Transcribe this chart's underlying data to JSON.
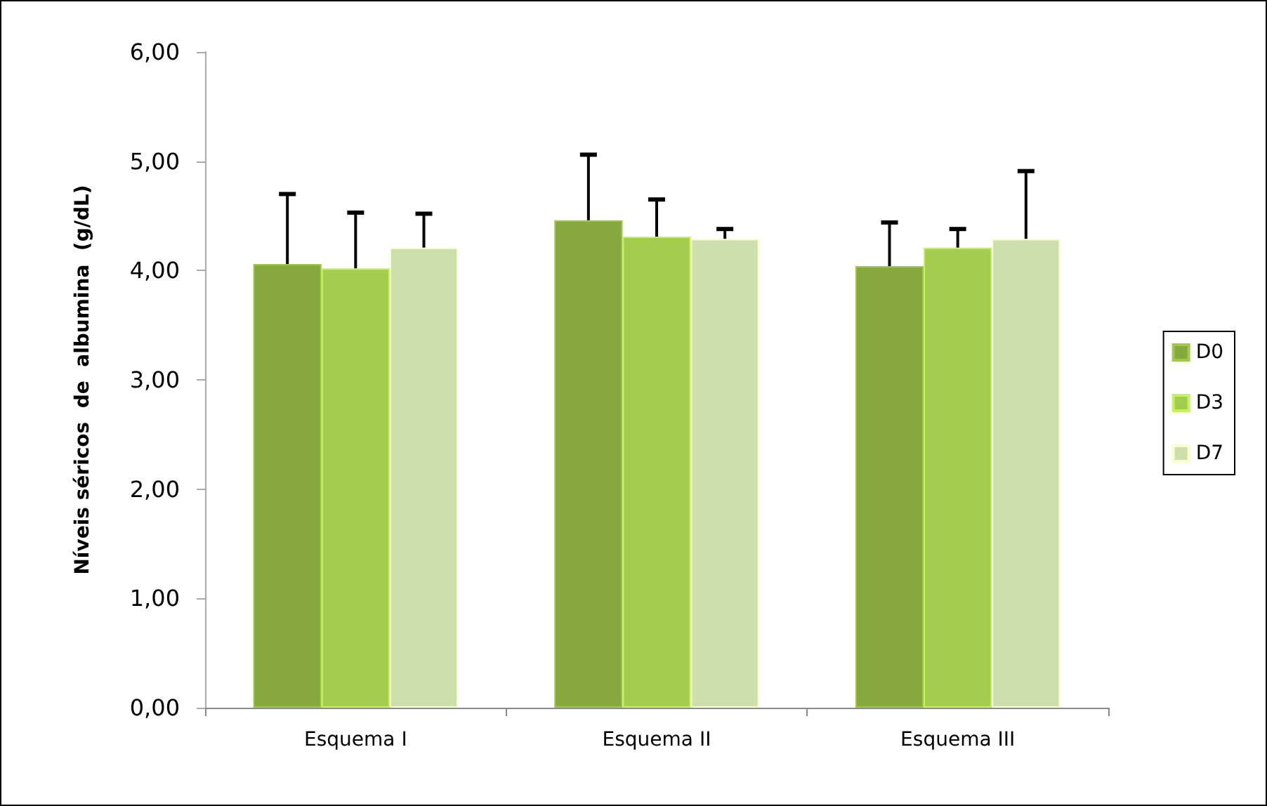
{
  "chart_data": {
    "type": "bar",
    "ylabel": "Níveis séricos  de  albumina  (g/dL)",
    "categories": [
      "Esquema I",
      "Esquema II",
      "Esquema III"
    ],
    "series": [
      {
        "name": "D0",
        "color": "#86a83e",
        "values": [
          4.06,
          4.46,
          4.04
        ],
        "errors": [
          [
            4.06,
            4.7
          ],
          [
            4.46,
            5.06
          ],
          [
            4.04,
            4.44
          ]
        ]
      },
      {
        "name": "D3",
        "color": "#a4cc4e",
        "values": [
          4.02,
          4.31,
          4.21
        ],
        "errors": [
          [
            4.02,
            4.53
          ],
          [
            4.31,
            4.65
          ],
          [
            4.21,
            4.38
          ]
        ]
      },
      {
        "name": "D7",
        "color": "#cde0ab",
        "values": [
          4.21,
          4.29,
          4.29
        ],
        "errors": [
          [
            4.21,
            4.52
          ],
          [
            4.29,
            4.38
          ],
          [
            4.29,
            4.91
          ]
        ]
      }
    ],
    "ylim": [
      0,
      6
    ],
    "yticks": [
      {
        "value": 0,
        "label": "0,00"
      },
      {
        "value": 1,
        "label": "1,00"
      },
      {
        "value": 2,
        "label": "2,00"
      },
      {
        "value": 3,
        "label": "3,00"
      },
      {
        "value": 4,
        "label": "4,00"
      },
      {
        "value": 5,
        "label": "5,00"
      },
      {
        "value": 6,
        "label": "6,00"
      }
    ],
    "grid": false,
    "legend": "right"
  }
}
